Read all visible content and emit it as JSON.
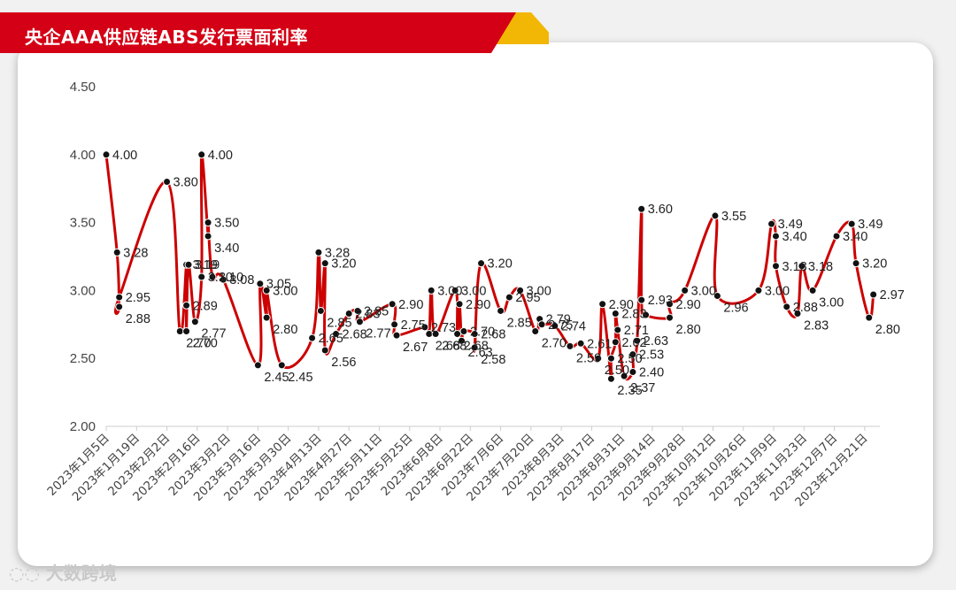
{
  "title": "央企AAA供应链ABS发行票面利率",
  "watermark": "大数跨境",
  "colors": {
    "banner": "#d40015",
    "banner_accent": "#f2b705",
    "line": "#cc0000",
    "marker": "#111111",
    "axis": "#cccccc"
  },
  "chart_data": {
    "type": "line",
    "title": "央企AAA供应链ABS发行票面利率",
    "xlabel": "",
    "ylabel": "",
    "ylim": [
      2.0,
      4.5
    ],
    "yticks": [
      "2.00",
      "2.50",
      "3.00",
      "3.50",
      "4.00",
      "4.50"
    ],
    "xlim": [
      "2023-01-05",
      "2023-12-28"
    ],
    "xticks": [
      "2023年1月5日",
      "2023年1月19日",
      "2023年2月2日",
      "2023年2月16日",
      "2023年3月2日",
      "2023年3月16日",
      "2023年3月30日",
      "2023年4月13日",
      "2023年4月27日",
      "2023年5月11日",
      "2023年5月25日",
      "2023年6月8日",
      "2023年6月22日",
      "2023年7月6日",
      "2023年7月20日",
      "2023年8月3日",
      "2023年8月17日",
      "2023年8月31日",
      "2023年9月14日",
      "2023年9月28日",
      "2023年10月12日",
      "2023年10月26日",
      "2023年11月9日",
      "2023年11月23日",
      "2023年12月7日",
      "2023年12月21日"
    ],
    "grid": false,
    "legend": "none",
    "series": [
      {
        "points": [
          {
            "x": "2023-01-05",
            "y": 4.0,
            "label": "4.00"
          },
          {
            "x": "2023-01-10",
            "y": 3.28,
            "label": "3.28"
          },
          {
            "x": "2023-01-11",
            "y": 2.88,
            "label": "2.88"
          },
          {
            "x": "2023-01-11",
            "y": 2.95,
            "label": "2.95"
          },
          {
            "x": "2023-02-02",
            "y": 3.8,
            "label": "3.80"
          },
          {
            "x": "2023-02-08",
            "y": 2.7,
            "label": "2.70"
          },
          {
            "x": "2023-02-11",
            "y": 3.19,
            "label": "3.19"
          },
          {
            "x": "2023-02-11",
            "y": 2.89,
            "label": "2.89"
          },
          {
            "x": "2023-02-11",
            "y": 2.7,
            "label": "2.70"
          },
          {
            "x": "2023-02-12",
            "y": 3.19,
            "label": "3.19"
          },
          {
            "x": "2023-02-15",
            "y": 2.77,
            "label": "2.77"
          },
          {
            "x": "2023-02-18",
            "y": 3.1,
            "label": "3.10"
          },
          {
            "x": "2023-02-18",
            "y": 4.0,
            "label": "4.00"
          },
          {
            "x": "2023-02-21",
            "y": 3.4,
            "label": "3.40"
          },
          {
            "x": "2023-02-21",
            "y": 3.5,
            "label": "3.50"
          },
          {
            "x": "2023-02-23",
            "y": 3.1,
            "label": "3.10"
          },
          {
            "x": "2023-02-28",
            "y": 3.08,
            "label": "3.08"
          },
          {
            "x": "2023-03-16",
            "y": 2.45,
            "label": "2.45"
          },
          {
            "x": "2023-03-17",
            "y": 3.05,
            "label": "3.05"
          },
          {
            "x": "2023-03-20",
            "y": 2.8,
            "label": "2.80"
          },
          {
            "x": "2023-03-20",
            "y": 3.0,
            "label": "3.00"
          },
          {
            "x": "2023-03-27",
            "y": 2.45,
            "label": "2.45"
          },
          {
            "x": "2023-04-10",
            "y": 2.65,
            "label": "2.65"
          },
          {
            "x": "2023-04-13",
            "y": 3.28,
            "label": "3.28"
          },
          {
            "x": "2023-04-14",
            "y": 2.85,
            "label": "2.85"
          },
          {
            "x": "2023-04-16",
            "y": 3.2,
            "label": "3.20"
          },
          {
            "x": "2023-04-16",
            "y": 2.56,
            "label": "2.56"
          },
          {
            "x": "2023-04-21",
            "y": 2.68,
            "label": "2.68"
          },
          {
            "x": "2023-04-27",
            "y": 2.83,
            "label": "2.83"
          },
          {
            "x": "2023-05-01",
            "y": 2.85,
            "label": "2.85"
          },
          {
            "x": "2023-05-02",
            "y": 2.77,
            "label": "2.77"
          },
          {
            "x": "2023-05-17",
            "y": 2.9,
            "label": "2.90"
          },
          {
            "x": "2023-05-18",
            "y": 2.75,
            "label": "2.75"
          },
          {
            "x": "2023-05-19",
            "y": 2.67,
            "label": "2.67"
          },
          {
            "x": "2023-06-01",
            "y": 2.73,
            "label": "2.73"
          },
          {
            "x": "2023-06-03",
            "y": 2.68,
            "label": "2.68"
          },
          {
            "x": "2023-06-04",
            "y": 3.0,
            "label": "3.00"
          },
          {
            "x": "2023-06-06",
            "y": 2.68,
            "label": "2.68"
          },
          {
            "x": "2023-06-15",
            "y": 3.0,
            "label": "3.00"
          },
          {
            "x": "2023-06-16",
            "y": 2.68,
            "label": "2.68"
          },
          {
            "x": "2023-06-17",
            "y": 2.9,
            "label": "2.90"
          },
          {
            "x": "2023-06-18",
            "y": 2.63,
            "label": "2.63"
          },
          {
            "x": "2023-06-19",
            "y": 2.7,
            "label": "2.70"
          },
          {
            "x": "2023-06-24",
            "y": 2.68,
            "label": "2.68"
          },
          {
            "x": "2023-06-24",
            "y": 2.58,
            "label": "2.58"
          },
          {
            "x": "2023-06-27",
            "y": 3.2,
            "label": "3.20"
          },
          {
            "x": "2023-07-06",
            "y": 2.85,
            "label": "2.85"
          },
          {
            "x": "2023-07-10",
            "y": 2.95,
            "label": "2.95"
          },
          {
            "x": "2023-07-15",
            "y": 3.0,
            "label": "3.00"
          },
          {
            "x": "2023-07-22",
            "y": 2.7,
            "label": "2.70"
          },
          {
            "x": "2023-07-24",
            "y": 2.79,
            "label": "2.79"
          },
          {
            "x": "2023-07-25",
            "y": 2.75,
            "label": "2.75"
          },
          {
            "x": "2023-07-31",
            "y": 2.74,
            "label": "2.74"
          },
          {
            "x": "2023-08-07",
            "y": 2.59,
            "label": "2.59"
          },
          {
            "x": "2023-08-12",
            "y": 2.61,
            "label": "2.61"
          },
          {
            "x": "2023-08-20",
            "y": 2.5,
            "label": "2.50"
          },
          {
            "x": "2023-08-22",
            "y": 2.9,
            "label": "2.90"
          },
          {
            "x": "2023-08-26",
            "y": 2.35,
            "label": "2.35"
          },
          {
            "x": "2023-08-26",
            "y": 2.5,
            "label": "2.50"
          },
          {
            "x": "2023-08-28",
            "y": 2.62,
            "label": "2.62"
          },
          {
            "x": "2023-08-28",
            "y": 2.83,
            "label": "2.83"
          },
          {
            "x": "2023-08-29",
            "y": 2.71,
            "label": "2.71"
          },
          {
            "x": "2023-09-01",
            "y": 2.37,
            "label": "2.37"
          },
          {
            "x": "2023-09-05",
            "y": 2.4,
            "label": "2.40"
          },
          {
            "x": "2023-09-05",
            "y": 2.53,
            "label": "2.53"
          },
          {
            "x": "2023-09-07",
            "y": 2.63,
            "label": "2.63"
          },
          {
            "x": "2023-09-09",
            "y": 3.6,
            "label": "3.60"
          },
          {
            "x": "2023-09-09",
            "y": 2.93,
            "label": "2.93"
          },
          {
            "x": "2023-09-11",
            "y": 2.82,
            "label": ""
          },
          {
            "x": "2023-09-22",
            "y": 2.8,
            "label": "2.80"
          },
          {
            "x": "2023-09-22",
            "y": 2.9,
            "label": "2.90"
          },
          {
            "x": "2023-09-29",
            "y": 3.0,
            "label": "3.00"
          },
          {
            "x": "2023-10-13",
            "y": 3.55,
            "label": "3.55"
          },
          {
            "x": "2023-10-14",
            "y": 2.96,
            "label": "2.96"
          },
          {
            "x": "2023-11-02",
            "y": 3.0,
            "label": "3.00"
          },
          {
            "x": "2023-11-08",
            "y": 3.49,
            "label": "3.49"
          },
          {
            "x": "2023-11-10",
            "y": 3.4,
            "label": "3.40"
          },
          {
            "x": "2023-11-10",
            "y": 3.18,
            "label": "3.18"
          },
          {
            "x": "2023-11-15",
            "y": 2.88,
            "label": "2.88"
          },
          {
            "x": "2023-11-20",
            "y": 2.83,
            "label": "2.83"
          },
          {
            "x": "2023-11-22",
            "y": 3.18,
            "label": "3.18"
          },
          {
            "x": "2023-11-27",
            "y": 3.0,
            "label": "3.00"
          },
          {
            "x": "2023-12-08",
            "y": 3.4,
            "label": "3.40"
          },
          {
            "x": "2023-12-15",
            "y": 3.49,
            "label": "3.49"
          },
          {
            "x": "2023-12-17",
            "y": 3.2,
            "label": "3.20"
          },
          {
            "x": "2023-12-23",
            "y": 2.8,
            "label": "2.80"
          },
          {
            "x": "2023-12-25",
            "y": 2.97,
            "label": "2.97"
          }
        ]
      }
    ]
  }
}
